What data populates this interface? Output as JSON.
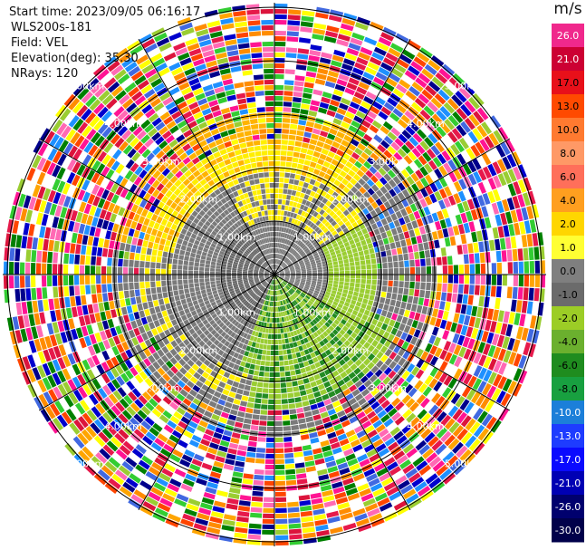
{
  "header": {
    "start_time": "Start time: 2023/09/05 06:16:17",
    "station": "WLS200s-181",
    "field": "Field: VEL",
    "elevation": "Elevation(deg): 35.30",
    "nrays": "NRays: 120"
  },
  "colorbar": {
    "unit": "m/s",
    "ticks": [
      "26.0",
      "21.0",
      "17.0",
      "13.0",
      "10.0",
      "8.0",
      "6.0",
      "4.0",
      "2.0",
      "1.0",
      "0.0",
      "-1.0",
      "-2.0",
      "-4.0",
      "-6.0",
      "-8.0",
      "-10.0",
      "-13.0",
      "-17.0",
      "-21.0",
      "-26.0",
      "-30.0"
    ],
    "colors": [
      "#f0288c",
      "#cc0033",
      "#e8101a",
      "#ff4a00",
      "#ff7a30",
      "#ff9966",
      "#ff6f5a",
      "#ff9f1f",
      "#ffd600",
      "#ffff33",
      "#7f7f7f",
      "#6b6b6b",
      "#9ccd26",
      "#6bb02e",
      "#1f8c1f",
      "#18a040",
      "#1c7fd9",
      "#1e3cff",
      "#0a0aff",
      "#0000b4",
      "#00006e",
      "#00004a"
    ]
  },
  "range_rings": {
    "labels": [
      "1.00km",
      "2.00km",
      "3.00km",
      "4.00km",
      "5.00km"
    ]
  },
  "palette": {
    "gray": "#7a7a7a",
    "gray_dark": "#666666",
    "yellow": "#ffee00",
    "orange": "#ffb300",
    "green": "#9acd32",
    "green_dark": "#228b22",
    "noise": [
      "#ff1493",
      "#e6194b",
      "#0000cd",
      "#00008b",
      "#ffff00",
      "#9acd32",
      "#ff8c00",
      "#008000",
      "#ff4500",
      "#1e90ff",
      "#ff69b4",
      "#4169e1",
      "#ffa500",
      "#32cd32",
      "#dc143c"
    ]
  }
}
